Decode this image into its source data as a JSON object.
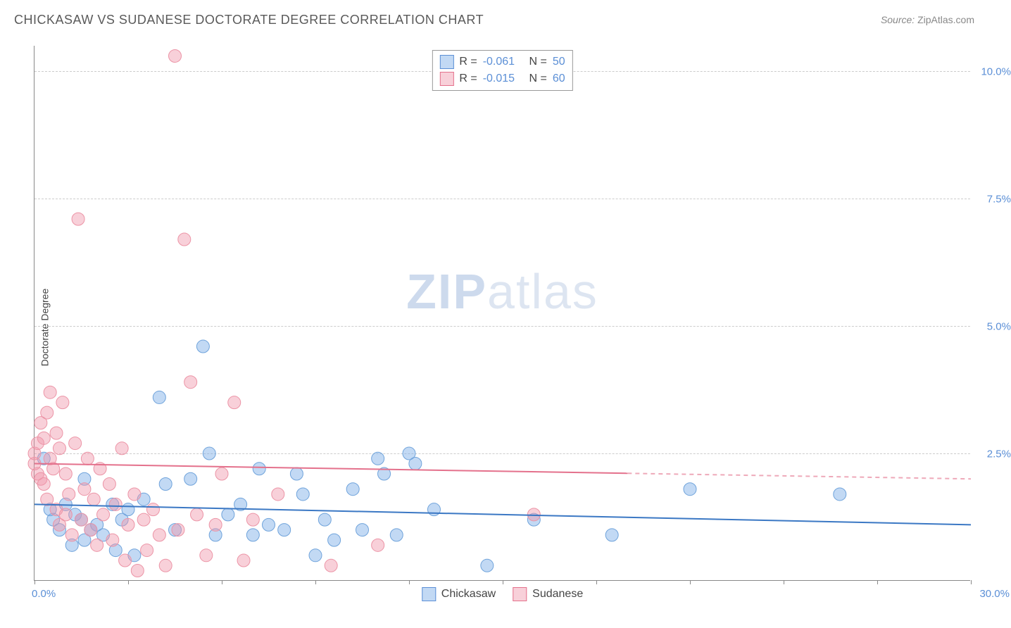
{
  "title": "CHICKASAW VS SUDANESE DOCTORATE DEGREE CORRELATION CHART",
  "source_label": "Source:",
  "source_name": "ZipAtlas.com",
  "y_axis_label": "Doctorate Degree",
  "watermark_zip": "ZIP",
  "watermark_atlas": "atlas",
  "chart": {
    "type": "scatter",
    "background_color": "#ffffff",
    "grid_color": "#cccccc",
    "axis_color": "#888888",
    "tick_label_color": "#5b8fd6",
    "xlim": [
      0,
      30
    ],
    "ylim": [
      0,
      10.5
    ],
    "x_ticks": [
      0,
      3,
      6,
      9,
      12,
      15,
      18,
      21,
      24,
      27,
      30
    ],
    "y_ticks": [
      2.5,
      5.0,
      7.5,
      10.0
    ],
    "y_tick_labels": [
      "2.5%",
      "5.0%",
      "7.5%",
      "10.0%"
    ],
    "x_origin_label": "0.0%",
    "x_max_label": "30.0%",
    "marker_radius": 9,
    "marker_opacity": 0.45,
    "line_width": 2,
    "series": [
      {
        "name": "Chickasaw",
        "color_fill": "rgba(120, 170, 230, 0.45)",
        "color_stroke": "#6fa3db",
        "line_color": "#3b78c4",
        "r_value": "-0.061",
        "n_value": "50",
        "trend": {
          "x1": 0,
          "y1": 1.5,
          "x2": 30,
          "y2": 1.1,
          "dash_from_x": 30
        },
        "points": [
          [
            0.3,
            2.4
          ],
          [
            0.5,
            1.4
          ],
          [
            0.6,
            1.2
          ],
          [
            0.8,
            1.0
          ],
          [
            1.0,
            1.5
          ],
          [
            1.2,
            0.7
          ],
          [
            1.3,
            1.3
          ],
          [
            1.5,
            1.2
          ],
          [
            1.6,
            0.8
          ],
          [
            1.6,
            2.0
          ],
          [
            1.8,
            1.0
          ],
          [
            2.0,
            1.1
          ],
          [
            2.2,
            0.9
          ],
          [
            2.5,
            1.5
          ],
          [
            2.6,
            0.6
          ],
          [
            2.8,
            1.2
          ],
          [
            3.0,
            1.4
          ],
          [
            3.2,
            0.5
          ],
          [
            3.5,
            1.6
          ],
          [
            4.0,
            3.6
          ],
          [
            4.2,
            1.9
          ],
          [
            4.5,
            1.0
          ],
          [
            5.0,
            2.0
          ],
          [
            5.4,
            4.6
          ],
          [
            5.6,
            2.5
          ],
          [
            5.8,
            0.9
          ],
          [
            6.2,
            1.3
          ],
          [
            6.6,
            1.5
          ],
          [
            7.0,
            0.9
          ],
          [
            7.2,
            2.2
          ],
          [
            7.5,
            1.1
          ],
          [
            8.0,
            1.0
          ],
          [
            8.4,
            2.1
          ],
          [
            8.6,
            1.7
          ],
          [
            9.0,
            0.5
          ],
          [
            9.3,
            1.2
          ],
          [
            9.6,
            0.8
          ],
          [
            10.2,
            1.8
          ],
          [
            10.5,
            1.0
          ],
          [
            11.0,
            2.4
          ],
          [
            11.2,
            2.1
          ],
          [
            11.6,
            0.9
          ],
          [
            12.0,
            2.5
          ],
          [
            12.2,
            2.3
          ],
          [
            12.8,
            1.4
          ],
          [
            14.5,
            0.3
          ],
          [
            16.0,
            1.2
          ],
          [
            18.5,
            0.9
          ],
          [
            21.0,
            1.8
          ],
          [
            25.8,
            1.7
          ]
        ]
      },
      {
        "name": "Sudanese",
        "color_fill": "rgba(240, 150, 170, 0.45)",
        "color_stroke": "#ec94a6",
        "line_color": "#e4718c",
        "r_value": "-0.015",
        "n_value": "60",
        "trend": {
          "x1": 0,
          "y1": 2.3,
          "x2": 30,
          "y2": 2.0,
          "dash_from_x": 19
        },
        "points": [
          [
            0.0,
            2.3
          ],
          [
            0.0,
            2.5
          ],
          [
            0.1,
            2.1
          ],
          [
            0.1,
            2.7
          ],
          [
            0.2,
            2.0
          ],
          [
            0.2,
            3.1
          ],
          [
            0.3,
            1.9
          ],
          [
            0.3,
            2.8
          ],
          [
            0.4,
            1.6
          ],
          [
            0.4,
            3.3
          ],
          [
            0.5,
            2.4
          ],
          [
            0.5,
            3.7
          ],
          [
            0.6,
            2.2
          ],
          [
            0.7,
            1.4
          ],
          [
            0.7,
            2.9
          ],
          [
            0.8,
            1.1
          ],
          [
            0.8,
            2.6
          ],
          [
            0.9,
            3.5
          ],
          [
            1.0,
            1.3
          ],
          [
            1.0,
            2.1
          ],
          [
            1.1,
            1.7
          ],
          [
            1.2,
            0.9
          ],
          [
            1.3,
            2.7
          ],
          [
            1.4,
            7.1
          ],
          [
            1.5,
            1.2
          ],
          [
            1.6,
            1.8
          ],
          [
            1.7,
            2.4
          ],
          [
            1.8,
            1.0
          ],
          [
            1.9,
            1.6
          ],
          [
            2.0,
            0.7
          ],
          [
            2.1,
            2.2
          ],
          [
            2.2,
            1.3
          ],
          [
            2.4,
            1.9
          ],
          [
            2.5,
            0.8
          ],
          [
            2.6,
            1.5
          ],
          [
            2.8,
            2.6
          ],
          [
            2.9,
            0.4
          ],
          [
            3.0,
            1.1
          ],
          [
            3.2,
            1.7
          ],
          [
            3.3,
            0.2
          ],
          [
            3.5,
            1.2
          ],
          [
            3.6,
            0.6
          ],
          [
            3.8,
            1.4
          ],
          [
            4.0,
            0.9
          ],
          [
            4.2,
            0.3
          ],
          [
            4.5,
            10.3
          ],
          [
            4.6,
            1.0
          ],
          [
            4.8,
            6.7
          ],
          [
            5.0,
            3.9
          ],
          [
            5.2,
            1.3
          ],
          [
            5.5,
            0.5
          ],
          [
            5.8,
            1.1
          ],
          [
            6.0,
            2.1
          ],
          [
            6.4,
            3.5
          ],
          [
            6.7,
            0.4
          ],
          [
            7.0,
            1.2
          ],
          [
            7.8,
            1.7
          ],
          [
            9.5,
            0.3
          ],
          [
            11.0,
            0.7
          ],
          [
            16.0,
            1.3
          ]
        ]
      }
    ]
  },
  "legend_top": {
    "r_label": "R =",
    "n_label": "N ="
  },
  "legend_bottom": [
    {
      "label": "Chickasaw",
      "swatch_class": "blue"
    },
    {
      "label": "Sudanese",
      "swatch_class": "pink"
    }
  ]
}
